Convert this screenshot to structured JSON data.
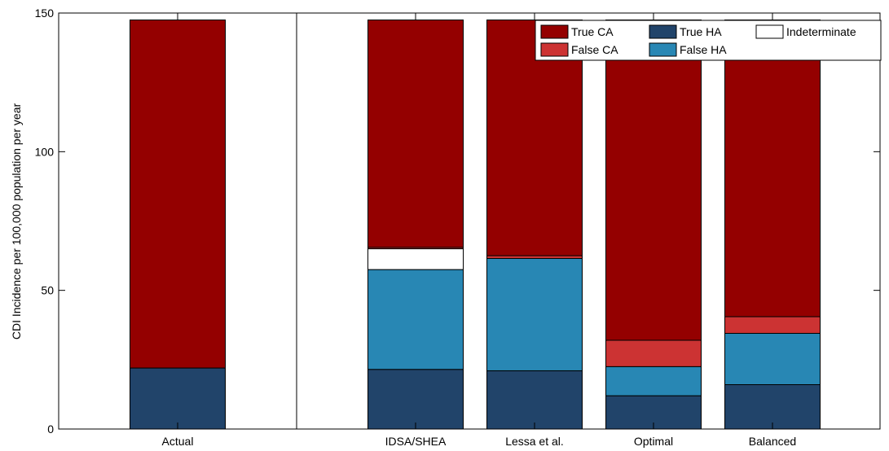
{
  "chart_data": {
    "type": "bar",
    "stacked": true,
    "categories": [
      "Actual",
      "IDSA/SHEA",
      "Lessa et al.",
      "Optimal",
      "Balanced"
    ],
    "series": [
      {
        "name": "True HA",
        "color": "#21446a",
        "values": [
          22,
          21.5,
          21,
          12,
          16
        ]
      },
      {
        "name": "False HA",
        "color": "#2887b4",
        "values": [
          0,
          36,
          40.5,
          10.5,
          18.5
        ]
      },
      {
        "name": "Indeterminate",
        "color": "#ffffff",
        "values": [
          0,
          7.5,
          0,
          0,
          0
        ]
      },
      {
        "name": "False CA",
        "color": "#cc3333",
        "values": [
          0,
          0.5,
          1,
          9.5,
          6
        ]
      },
      {
        "name": "True CA",
        "color": "#940000",
        "values": [
          125.5,
          82,
          85,
          115.5,
          107
        ]
      }
    ],
    "ylabel": "CDI Incidence per 100,000 population per year",
    "ylim": [
      0,
      150
    ],
    "yticks": [
      "0",
      "50",
      "100",
      "150"
    ],
    "legend": {
      "placement": "top-right",
      "entries": [
        {
          "name": "True CA",
          "color": "#940000"
        },
        {
          "name": "True HA",
          "color": "#21446a"
        },
        {
          "name": "Indeterminate",
          "color": "#ffffff"
        },
        {
          "name": "False CA",
          "color": "#cc3333"
        },
        {
          "name": "False HA",
          "color": "#2887b4"
        }
      ]
    },
    "grid": false,
    "separator_after_category": "Actual"
  }
}
